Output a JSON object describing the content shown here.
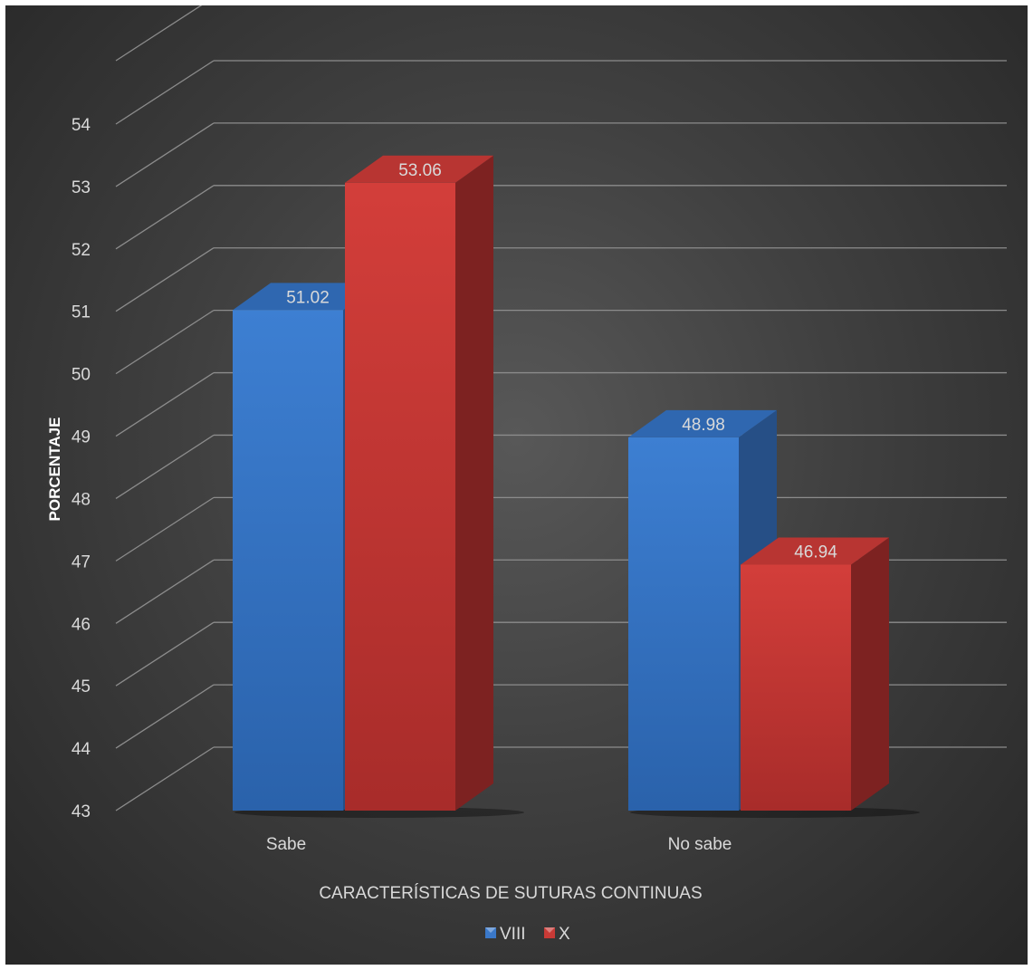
{
  "chart_data": {
    "type": "bar",
    "categories": [
      "Sabe",
      "No sabe"
    ],
    "series": [
      {
        "name": "VIII",
        "values": [
          51.02,
          48.98
        ],
        "color": "#3a78c9"
      },
      {
        "name": "X",
        "values": [
          53.06,
          46.94
        ],
        "color": "#c83a36"
      }
    ],
    "xlabel": "CARACTERÍSTICAS DE SUTURAS CONTINUAS",
    "ylabel": "PORCENTAJE",
    "ylim": [
      43,
      54
    ],
    "yticks": [
      43,
      44,
      45,
      46,
      47,
      48,
      49,
      50,
      51,
      52,
      53,
      54
    ],
    "grid": true,
    "legend_position": "bottom",
    "style": "3d-clustered-column",
    "background": "#404040"
  }
}
